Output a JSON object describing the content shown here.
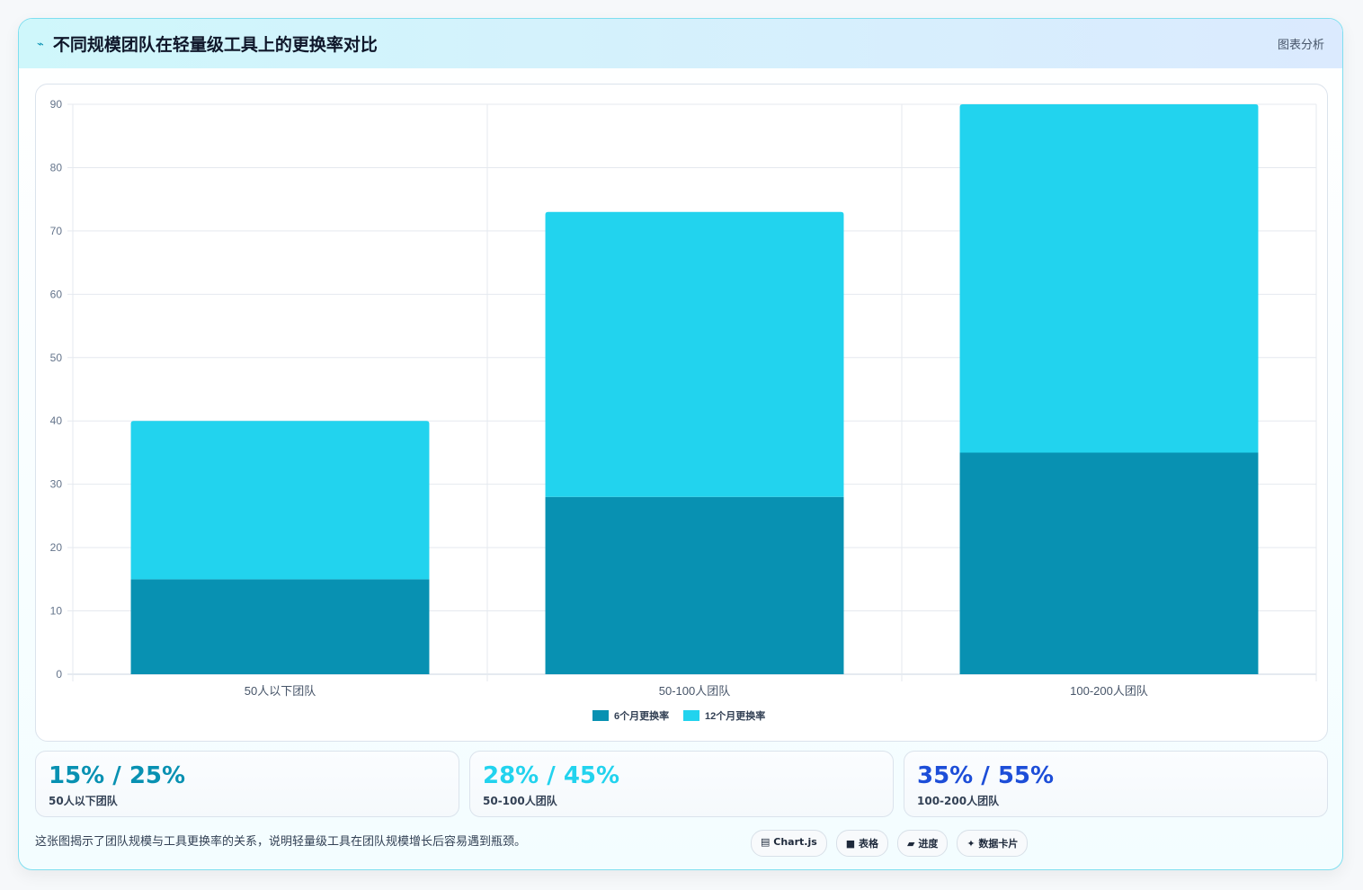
{
  "header": {
    "icon": "chart-line-icon",
    "title": "不同规模团队在轻量级工具上的更换率对比",
    "tag": "图表分析"
  },
  "chart_data": {
    "type": "bar",
    "stacked": true,
    "categories": [
      "50人以下团队",
      "50-100人团队",
      "100-200人团队"
    ],
    "series": [
      {
        "name": "6个月更换率",
        "values": [
          15,
          28,
          35
        ],
        "color": "#0891b2"
      },
      {
        "name": "12个月更换率",
        "values": [
          25,
          45,
          55
        ],
        "color": "#22d3ee"
      }
    ],
    "ylim": [
      0,
      90
    ],
    "yticks": [
      0,
      10,
      20,
      30,
      40,
      50,
      60,
      70,
      80,
      90
    ],
    "grid": true,
    "legend": "bottom"
  },
  "stats": [
    {
      "value": "15% / 25%",
      "label": "50人以下团队",
      "color": "#0891b2"
    },
    {
      "value": "28% / 45%",
      "label": "50-100人团队",
      "color": "#22d3ee"
    },
    {
      "value": "35% / 55%",
      "label": "100-200人团队",
      "color": "#1d4ed8"
    }
  ],
  "footer": {
    "note": "这张图揭示了团队规模与工具更换率的关系，说明轻量级工具在团队规模增长后容易遇到瓶颈。",
    "pills": [
      {
        "icon": "chart-icon",
        "glyph": "▤",
        "label": "Chart.js"
      },
      {
        "icon": "table-icon",
        "glyph": "■",
        "label": "表格"
      },
      {
        "icon": "progress-icon",
        "glyph": "▰",
        "label": "进度"
      },
      {
        "icon": "sparkle-icon",
        "glyph": "✦",
        "label": "数据卡片"
      }
    ]
  }
}
